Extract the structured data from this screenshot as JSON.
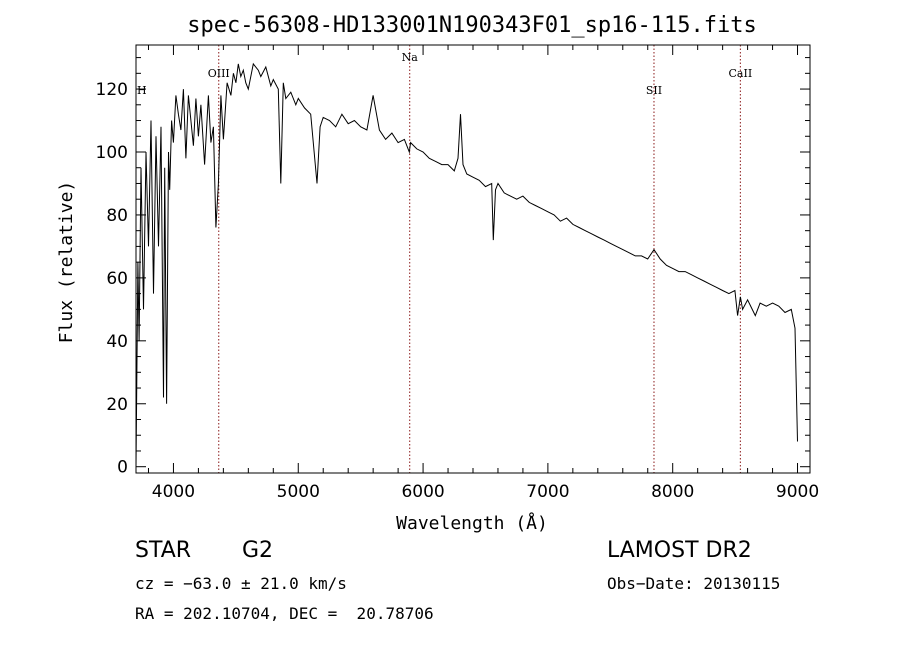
{
  "chart_data": {
    "type": "line",
    "title": "spec-56308-HD133001N190343F01_sp16-115.fits",
    "xlabel": "Wavelength (Å)",
    "ylabel": "Flux (relative)",
    "xlim": [
      3700,
      9100
    ],
    "ylim": [
      -2,
      134
    ],
    "xticks": [
      4000,
      5000,
      6000,
      7000,
      8000,
      9000
    ],
    "yticks": [
      0,
      20,
      40,
      60,
      80,
      100,
      120
    ],
    "grid": false,
    "line_color": "#000000",
    "line_markers": [
      {
        "label": "H",
        "x": 3700,
        "color": "#8b1a1a"
      },
      {
        "label": "OIII",
        "x": 4363,
        "color": "#8b1a1a"
      },
      {
        "label": "Na",
        "x": 5893,
        "color": "#8b1a1a"
      },
      {
        "label": "SII",
        "x": 7850,
        "color": "#8b1a1a"
      },
      {
        "label": "CaII",
        "x": 8542,
        "color": "#8b1a1a"
      }
    ],
    "series": [
      {
        "x": [
          3700,
          3715,
          3725,
          3740,
          3760,
          3780,
          3800,
          3820,
          3840,
          3860,
          3880,
          3900,
          3920,
          3930,
          3945,
          3960,
          3970,
          3985,
          4000,
          4020,
          4040,
          4060,
          4080,
          4100,
          4120,
          4140,
          4160,
          4180,
          4200,
          4220,
          4250,
          4280,
          4300,
          4320,
          4340,
          4360,
          4380,
          4400,
          4430,
          4460,
          4480,
          4500,
          4520,
          4540,
          4560,
          4580,
          4600,
          4640,
          4680,
          4700,
          4740,
          4780,
          4800,
          4840,
          4860,
          4880,
          4900,
          4940,
          4980,
          5000,
          5050,
          5100,
          5150,
          5175,
          5200,
          5250,
          5300,
          5350,
          5400,
          5450,
          5500,
          5550,
          5600,
          5650,
          5700,
          5750,
          5800,
          5850,
          5890,
          5900,
          5950,
          6000,
          6050,
          6100,
          6150,
          6200,
          6250,
          6280,
          6300,
          6320,
          6350,
          6400,
          6450,
          6500,
          6550,
          6563,
          6580,
          6600,
          6650,
          6700,
          6750,
          6800,
          6850,
          6900,
          6950,
          7000,
          7050,
          7100,
          7150,
          7200,
          7250,
          7300,
          7350,
          7400,
          7450,
          7500,
          7550,
          7600,
          7650,
          7700,
          7750,
          7800,
          7850,
          7900,
          7950,
          8000,
          8050,
          8100,
          8150,
          8200,
          8250,
          8300,
          8350,
          8400,
          8450,
          8498,
          8520,
          8542,
          8560,
          8600,
          8662,
          8700,
          8750,
          8800,
          8850,
          8900,
          8950,
          8980,
          9000
        ],
        "values": [
          0,
          65,
          40,
          95,
          50,
          100,
          70,
          110,
          55,
          105,
          70,
          108,
          22,
          95,
          20,
          100,
          88,
          110,
          103,
          118,
          112,
          107,
          120,
          98,
          118,
          110,
          102,
          117,
          105,
          115,
          96,
          118,
          103,
          108,
          76,
          90,
          118,
          104,
          122,
          118,
          125,
          122,
          128,
          124,
          126,
          122,
          120,
          128,
          126,
          124,
          127,
          121,
          123,
          120,
          90,
          122,
          117,
          119,
          115,
          117,
          114,
          112,
          90,
          108,
          111,
          110,
          108,
          112,
          109,
          110,
          108,
          107,
          118,
          107,
          104,
          106,
          103,
          104,
          100,
          103,
          101,
          100,
          98,
          97,
          96,
          96,
          94,
          98,
          112,
          96,
          93,
          92,
          91,
          89,
          90,
          72,
          88,
          90,
          87,
          86,
          85,
          86,
          84,
          83,
          82,
          81,
          80,
          78,
          79,
          77,
          76,
          75,
          74,
          73,
          72,
          71,
          70,
          69,
          68,
          67,
          67,
          66,
          69,
          66,
          64,
          63,
          62,
          62,
          61,
          60,
          59,
          58,
          57,
          56,
          55,
          56,
          48,
          54,
          50,
          53,
          48,
          52,
          51,
          52,
          51,
          49,
          50,
          44,
          8
        ]
      }
    ]
  },
  "info": {
    "object_class": "STAR",
    "subclass": "G2",
    "survey": "LAMOST DR2",
    "cz": "cz = −63.0 ± 21.0 km/s",
    "obs_date": "Obs−Date: 20130115",
    "coords": "RA = 202.10704, DEC =  20.78706"
  }
}
